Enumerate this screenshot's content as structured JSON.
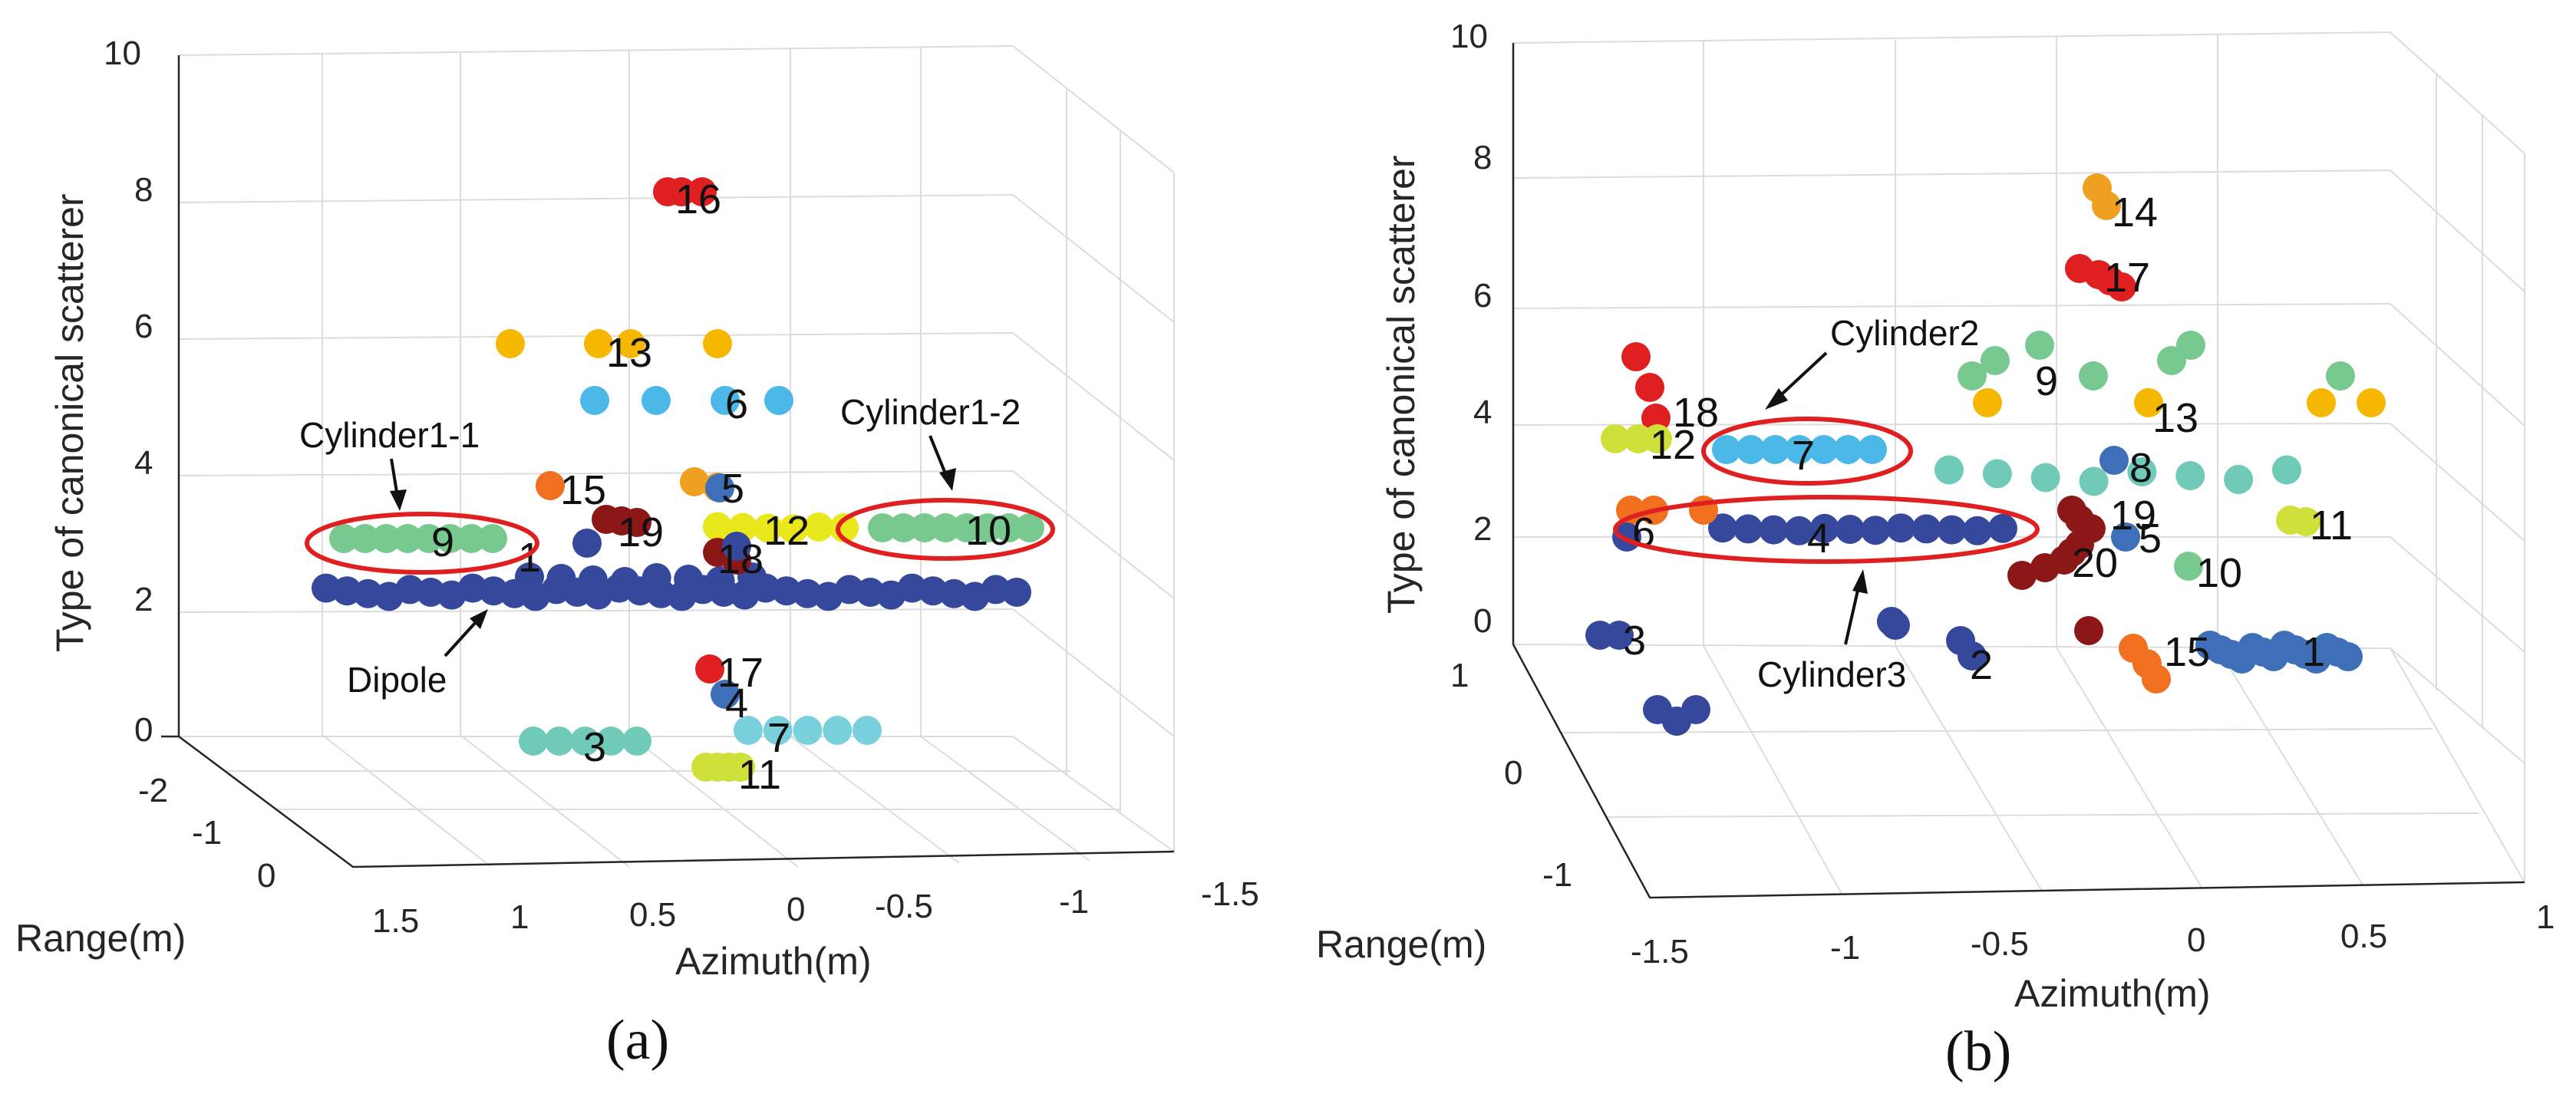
{
  "chart_data": [
    {
      "type": "scatter3d",
      "panel_label": "(a)",
      "xlabel": "Azimuth(m)",
      "ylabel": "Range(m)",
      "zlabel": "Type of canonical scatterer",
      "xticks": [
        "1.5",
        "1",
        "0.5",
        "0",
        "-0.5",
        "-1",
        "-1.5"
      ],
      "yticks": [
        "-2",
        "-1",
        "0"
      ],
      "zticks": [
        "0",
        "2",
        "4",
        "6",
        "8",
        "10"
      ],
      "colors": {
        "1": "#35489c",
        "2": "#77c98f",
        "3": "#6fcbb7",
        "4": "#3f6fb8",
        "5": "#4bb8e8",
        "6": "#f5b700",
        "7": "#78d0dc",
        "8": "#e02020",
        "9": "#8b1717",
        "10": "#e8e81c",
        "11": "#cfe03a",
        "12": "#f07020",
        "13": "#f0a020"
      },
      "clusters": [
        {
          "label": "1",
          "type": 2,
          "color_key": "1",
          "count": 40,
          "spread": "dipole"
        },
        {
          "label": "9",
          "type": 3,
          "color_key": "2",
          "count": 8
        },
        {
          "label": "10",
          "type": 3,
          "color_key": "2",
          "count": 8
        },
        {
          "label": "13",
          "type": 6,
          "color_key": "6",
          "count": 4
        },
        {
          "label": "6",
          "type": 5,
          "color_key": "5",
          "count": 5
        },
        {
          "label": "16",
          "type": 8,
          "color_key": "8",
          "count": 3
        },
        {
          "label": "15",
          "type": 4,
          "color_key": "12",
          "count": 1
        },
        {
          "label": "19",
          "type": 3,
          "color_key": "9",
          "count": 4
        },
        {
          "label": "5",
          "type": 4,
          "color_key": "13",
          "count": 3
        },
        {
          "label": "12",
          "type": 3,
          "color_key": "10",
          "count": 6
        },
        {
          "label": "18",
          "type": 2,
          "color_key": "9",
          "count": 3
        },
        {
          "label": "17",
          "type": 1,
          "color_key": "8",
          "count": 1
        },
        {
          "label": "4",
          "type": 1,
          "color_key": "4",
          "count": 1
        },
        {
          "label": "7",
          "type": 0,
          "color_key": "7",
          "count": 5
        },
        {
          "label": "3",
          "type": 0,
          "color_key": "3",
          "count": 5
        },
        {
          "label": "11",
          "type": 0,
          "color_key": "11",
          "count": 4
        }
      ],
      "annotations": [
        "Cylinder1-1",
        "Cylinder1-2",
        "Dipole"
      ]
    },
    {
      "type": "scatter3d",
      "panel_label": "(b)",
      "xlabel": "Azimuth(m)",
      "ylabel": "Range(m)",
      "zlabel": "Type of canonical scatterer",
      "xticks": [
        "-1.5",
        "-1",
        "-0.5",
        "0",
        "0.5",
        "1"
      ],
      "yticks": [
        "1",
        "0",
        "-1"
      ],
      "zticks": [
        "0",
        "2",
        "4",
        "6",
        "8",
        "10"
      ],
      "clusters": [
        {
          "label": "14",
          "type": 8,
          "color_key": "13",
          "count": 2
        },
        {
          "label": "17",
          "type": 6,
          "color_key": "8",
          "count": 4
        },
        {
          "label": "9",
          "type": 4,
          "color_key": "2",
          "count": 6
        },
        {
          "label": "13",
          "type": 4,
          "color_key": "6",
          "count": 4
        },
        {
          "label": "18",
          "type": 4,
          "color_key": "8",
          "count": 3
        },
        {
          "label": "12",
          "type": 3,
          "color_key": "11",
          "count": 3
        },
        {
          "label": "7",
          "type": 3,
          "color_key": "5",
          "count": 7
        },
        {
          "label": "8",
          "type": 3,
          "color_key": "3",
          "count": 8
        },
        {
          "label": "4",
          "type": 2,
          "color_key": "1",
          "count": 12
        },
        {
          "label": "6",
          "type": 2,
          "color_key": "12",
          "count": 3
        },
        {
          "label": "19",
          "type": 2,
          "color_key": "9",
          "count": 3
        },
        {
          "label": "5",
          "type": 2,
          "color_key": "4",
          "count": 2
        },
        {
          "label": "20",
          "type": 2,
          "color_key": "9",
          "count": 5
        },
        {
          "label": "11",
          "type": 2,
          "color_key": "11",
          "count": 2
        },
        {
          "label": "10",
          "type": 2,
          "color_key": "2",
          "count": 1
        },
        {
          "label": "3",
          "type": 0,
          "color_key": "1",
          "count": 2
        },
        {
          "label": "2",
          "type": 0,
          "color_key": "1",
          "count": 3
        },
        {
          "label": "15",
          "type": 0,
          "color_key": "12",
          "count": 3
        },
        {
          "label": "1",
          "type": 0,
          "color_key": "4",
          "count": 14
        }
      ],
      "annotations": [
        "Cylinder2",
        "Cylinder3"
      ]
    }
  ]
}
